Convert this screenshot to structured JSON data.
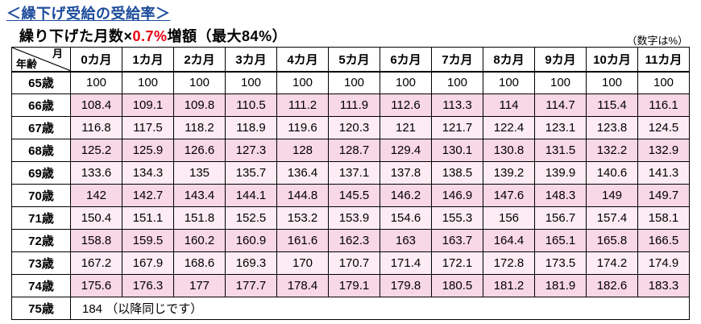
{
  "page_title": "＜繰下げ受給の受給率＞",
  "subtitle": {
    "prefix": "繰り下げた月数×",
    "highlight": "0.7%",
    "suffix": "増額（最大84%）"
  },
  "unit_note": "（数字は%）",
  "table": {
    "corner_top": "月",
    "corner_bottom": "年齢",
    "month_headers": [
      "0カ月",
      "1カ月",
      "2カ月",
      "3カ月",
      "4カ月",
      "5カ月",
      "6カ月",
      "7カ月",
      "8カ月",
      "9カ月",
      "10カ月",
      "11カ月"
    ],
    "rows": [
      {
        "age": "65歳",
        "values": [
          "100",
          "100",
          "100",
          "100",
          "100",
          "100",
          "100",
          "100",
          "100",
          "100",
          "100",
          "100"
        ]
      },
      {
        "age": "66歳",
        "values": [
          "108.4",
          "109.1",
          "109.8",
          "110.5",
          "111.2",
          "111.9",
          "112.6",
          "113.3",
          "114",
          "114.7",
          "115.4",
          "116.1"
        ]
      },
      {
        "age": "67歳",
        "values": [
          "116.8",
          "117.5",
          "118.2",
          "118.9",
          "119.6",
          "120.3",
          "121",
          "121.7",
          "122.4",
          "123.1",
          "123.8",
          "124.5"
        ]
      },
      {
        "age": "68歳",
        "values": [
          "125.2",
          "125.9",
          "126.6",
          "127.3",
          "128",
          "128.7",
          "129.4",
          "130.1",
          "130.8",
          "131.5",
          "132.2",
          "132.9"
        ]
      },
      {
        "age": "69歳",
        "values": [
          "133.6",
          "134.3",
          "135",
          "135.7",
          "136.4",
          "137.1",
          "137.8",
          "138.5",
          "139.2",
          "139.9",
          "140.6",
          "141.3"
        ]
      },
      {
        "age": "70歳",
        "values": [
          "142",
          "142.7",
          "143.4",
          "144.1",
          "144.8",
          "145.5",
          "146.2",
          "146.9",
          "147.6",
          "148.3",
          "149",
          "149.7"
        ]
      },
      {
        "age": "71歳",
        "values": [
          "150.4",
          "151.1",
          "151.8",
          "152.5",
          "153.2",
          "153.9",
          "154.6",
          "155.3",
          "156",
          "156.7",
          "157.4",
          "158.1"
        ]
      },
      {
        "age": "72歳",
        "values": [
          "158.8",
          "159.5",
          "160.2",
          "160.9",
          "161.6",
          "162.3",
          "163",
          "163.7",
          "164.4",
          "165.1",
          "165.8",
          "166.5"
        ]
      },
      {
        "age": "73歳",
        "values": [
          "167.2",
          "167.9",
          "168.6",
          "169.3",
          "170",
          "170.7",
          "171.4",
          "172.1",
          "172.8",
          "173.5",
          "174.2",
          "174.9"
        ]
      },
      {
        "age": "74歳",
        "values": [
          "175.6",
          "176.3",
          "177",
          "177.7",
          "178.4",
          "179.1",
          "179.8",
          "180.5",
          "181.2",
          "181.9",
          "182.6",
          "183.3"
        ]
      }
    ],
    "final_row": {
      "age": "75歳",
      "value": "184 （以降同じです）"
    }
  },
  "colors": {
    "title_blue": "#1b4a9b",
    "accent_red": "#e60012",
    "row_pink_dark": "#f8d7e6",
    "row_pink_light": "#fdecf3",
    "border_black": "#000000"
  }
}
